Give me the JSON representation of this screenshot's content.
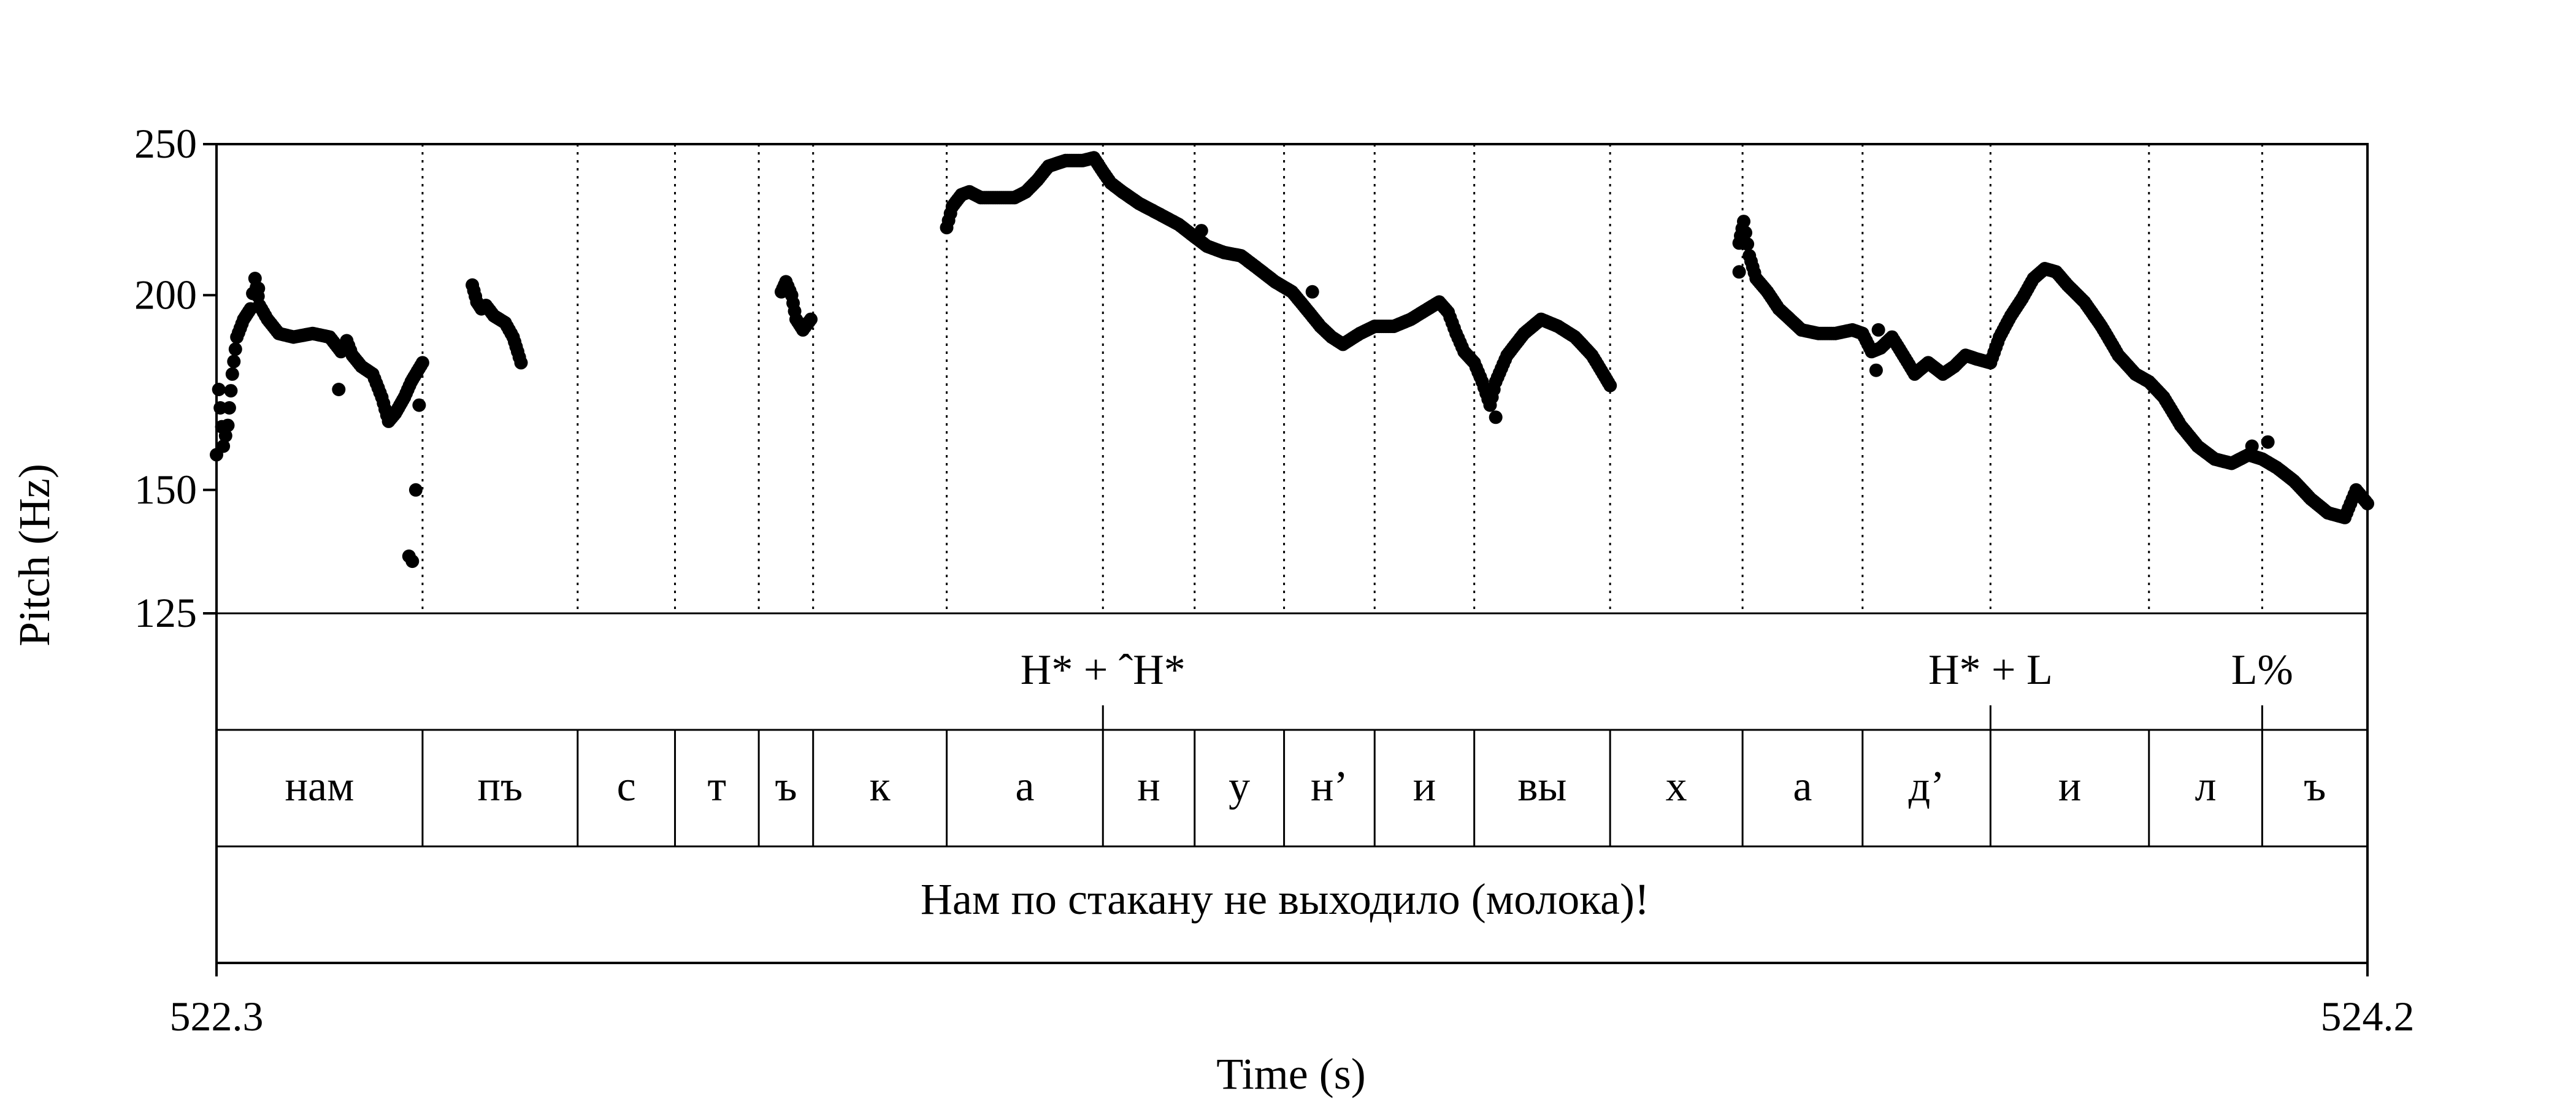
{
  "chart_data": {
    "type": "scatter",
    "xlabel": "Time (s)",
    "ylabel": "Pitch (Hz)",
    "xlim": [
      522.3,
      524.2
    ],
    "ylim": [
      125,
      250
    ],
    "y_scale": "log",
    "x_tick_labels": [
      "522.3",
      "524.2"
    ],
    "y_ticks": [
      125,
      150,
      200,
      250
    ],
    "y_tick_labels": [
      "125",
      "150",
      "200",
      "250"
    ],
    "boundaries": [
      522.482,
      522.619,
      522.705,
      522.779,
      522.827,
      522.945,
      523.083,
      523.164,
      523.243,
      523.323,
      523.411,
      523.531,
      523.648,
      523.754,
      523.867,
      524.007,
      524.107
    ],
    "tones": [
      {
        "label": "H* + ˆH*",
        "time": 523.083
      },
      {
        "label": "H* + L",
        "time": 523.867
      },
      {
        "label": "L%",
        "time": 524.107
      }
    ],
    "segments": [
      {
        "label": "нам",
        "start": 522.3,
        "end": 522.482
      },
      {
        "label": "пъ",
        "start": 522.482,
        "end": 522.619
      },
      {
        "label": "с",
        "start": 522.619,
        "end": 522.705
      },
      {
        "label": "т",
        "start": 522.705,
        "end": 522.779
      },
      {
        "label": "ъ",
        "start": 522.779,
        "end": 522.827
      },
      {
        "label": "к",
        "start": 522.827,
        "end": 522.945
      },
      {
        "label": "а",
        "start": 522.945,
        "end": 523.083
      },
      {
        "label": "н",
        "start": 523.083,
        "end": 523.164
      },
      {
        "label": "у",
        "start": 523.164,
        "end": 523.243
      },
      {
        "label": "н’",
        "start": 523.243,
        "end": 523.323
      },
      {
        "label": "и",
        "start": 523.323,
        "end": 523.411
      },
      {
        "label": "вы",
        "start": 523.411,
        "end": 523.531
      },
      {
        "label": "х",
        "start": 523.531,
        "end": 523.648
      },
      {
        "label": "а",
        "start": 523.648,
        "end": 523.754
      },
      {
        "label": "д’",
        "start": 523.754,
        "end": 523.867
      },
      {
        "label": "и",
        "start": 523.867,
        "end": 524.007
      },
      {
        "label": "л",
        "start": 524.007,
        "end": 524.107
      },
      {
        "label": "ъ",
        "start": 524.107,
        "end": 524.2
      }
    ],
    "sentence": "Нам по стакану не выходило (молока)!",
    "pitch_track_knots": [
      [
        [
          522.3,
          158
        ],
        [
          522.302,
          174
        ],
        [
          522.306,
          160
        ],
        [
          522.31,
          165
        ],
        [
          522.314,
          178
        ],
        [
          522.318,
          188
        ],
        [
          522.324,
          193
        ],
        [
          522.33,
          196
        ],
        [
          522.334,
          205
        ],
        [
          522.338,
          197
        ],
        [
          522.345,
          193
        ],
        [
          522.355,
          189
        ],
        [
          522.368,
          188
        ],
        [
          522.385,
          189
        ],
        [
          522.4,
          188
        ],
        [
          522.405,
          186
        ],
        [
          522.41,
          184
        ],
        [
          522.415,
          187
        ],
        [
          522.42,
          183
        ],
        [
          522.428,
          180
        ],
        [
          522.438,
          178
        ],
        [
          522.446,
          172
        ],
        [
          522.452,
          166
        ],
        [
          522.458,
          168
        ],
        [
          522.462,
          170
        ],
        [
          522.466,
          172
        ],
        [
          522.472,
          176
        ],
        [
          522.476,
          178
        ],
        [
          522.482,
          181
        ]
      ],
      [
        [
          522.526,
          203
        ],
        [
          522.53,
          198
        ],
        [
          522.534,
          196
        ],
        [
          522.538,
          197
        ],
        [
          522.545,
          194
        ],
        [
          522.555,
          192
        ],
        [
          522.562,
          188
        ],
        [
          522.566,
          184
        ],
        [
          522.569,
          181
        ]
      ],
      [
        [
          522.799,
          201
        ],
        [
          522.803,
          204
        ],
        [
          522.808,
          200
        ],
        [
          522.812,
          193
        ],
        [
          522.818,
          190
        ],
        [
          522.825,
          193
        ]
      ],
      [
        [
          522.945,
          221
        ],
        [
          522.95,
          228
        ],
        [
          522.958,
          232
        ],
        [
          522.965,
          233
        ],
        [
          522.975,
          231
        ],
        [
          522.99,
          231
        ],
        [
          523.005,
          231
        ],
        [
          523.015,
          233
        ],
        [
          523.025,
          237
        ],
        [
          523.035,
          242
        ],
        [
          523.05,
          244
        ],
        [
          523.065,
          244
        ],
        [
          523.075,
          245
        ],
        [
          523.083,
          240
        ],
        [
          523.09,
          236
        ],
        [
          523.1,
          233
        ],
        [
          523.115,
          229
        ],
        [
          523.13,
          226
        ],
        [
          523.15,
          222
        ],
        [
          523.164,
          218
        ],
        [
          523.175,
          215
        ],
        [
          523.19,
          213
        ],
        [
          523.205,
          212
        ],
        [
          523.22,
          208
        ],
        [
          523.235,
          204
        ],
        [
          523.25,
          201
        ],
        [
          523.265,
          195
        ],
        [
          523.275,
          191
        ],
        [
          523.285,
          188
        ],
        [
          523.295,
          186
        ],
        [
          523.31,
          189
        ],
        [
          523.323,
          191
        ],
        [
          523.34,
          191
        ],
        [
          523.355,
          193
        ],
        [
          523.37,
          196
        ],
        [
          523.38,
          198
        ],
        [
          523.388,
          195
        ],
        [
          523.395,
          189
        ],
        [
          523.402,
          184
        ],
        [
          523.411,
          181
        ],
        [
          523.418,
          176
        ],
        [
          523.425,
          170
        ],
        [
          523.43,
          176
        ],
        [
          523.44,
          183
        ],
        [
          523.455,
          189
        ],
        [
          523.47,
          193
        ],
        [
          523.485,
          191
        ],
        [
          523.5,
          188
        ],
        [
          523.515,
          183
        ],
        [
          523.525,
          178
        ],
        [
          523.531,
          175
        ]
      ],
      [
        [
          523.645,
          216
        ],
        [
          523.649,
          223
        ],
        [
          523.654,
          212
        ],
        [
          523.66,
          205
        ],
        [
          523.67,
          201
        ],
        [
          523.68,
          196
        ],
        [
          523.69,
          193
        ],
        [
          523.7,
          190
        ],
        [
          523.715,
          189
        ],
        [
          523.73,
          189
        ],
        [
          523.745,
          190
        ],
        [
          523.754,
          189
        ],
        [
          523.762,
          184
        ],
        [
          523.77,
          185
        ],
        [
          523.78,
          188
        ],
        [
          523.79,
          183
        ],
        [
          523.8,
          178
        ],
        [
          523.812,
          181
        ],
        [
          523.825,
          178
        ],
        [
          523.835,
          180
        ],
        [
          523.845,
          183
        ],
        [
          523.855,
          182
        ],
        [
          523.867,
          181
        ],
        [
          523.875,
          188
        ],
        [
          523.885,
          194
        ],
        [
          523.895,
          199
        ],
        [
          523.905,
          205
        ],
        [
          523.915,
          208
        ],
        [
          523.925,
          207
        ],
        [
          523.935,
          203
        ],
        [
          523.95,
          198
        ],
        [
          523.965,
          191
        ],
        [
          523.98,
          183
        ],
        [
          523.995,
          178
        ],
        [
          524.007,
          176
        ],
        [
          524.02,
          172
        ],
        [
          524.035,
          165
        ],
        [
          524.05,
          160
        ],
        [
          524.065,
          157
        ],
        [
          524.08,
          156
        ],
        [
          524.095,
          158
        ],
        [
          524.107,
          157
        ],
        [
          524.12,
          155
        ],
        [
          524.135,
          152
        ],
        [
          524.15,
          148
        ],
        [
          524.165,
          145
        ],
        [
          524.18,
          144
        ],
        [
          524.19,
          150
        ],
        [
          524.2,
          147
        ]
      ]
    ],
    "outliers": [
      [
        522.337,
        202
      ],
      [
        522.408,
        174
      ],
      [
        522.47,
        136
      ],
      [
        522.473,
        135
      ],
      [
        522.476,
        150
      ],
      [
        522.479,
        170
      ],
      [
        523.43,
        167
      ],
      [
        523.17,
        220
      ],
      [
        523.268,
        201
      ],
      [
        523.766,
        179
      ],
      [
        523.768,
        190
      ],
      [
        523.645,
        207
      ],
      [
        524.098,
        160
      ],
      [
        524.112,
        161
      ]
    ]
  }
}
